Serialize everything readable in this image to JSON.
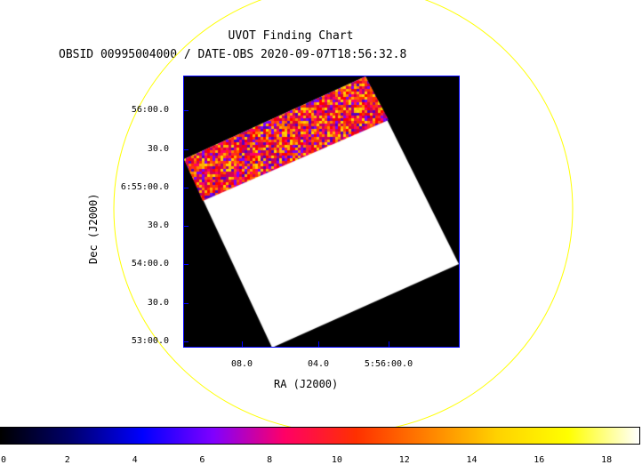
{
  "chart_data": {
    "type": "heatmap",
    "title": "UVOT Finding Chart",
    "subtitle": "OBSID 00995004000 / DATE-OBS 2020-09-07T18:56:32.8",
    "xlabel": "RA (J2000)",
    "ylabel": "Dec (J2000)",
    "x_ticks": [
      "08.0",
      "04.0",
      "5:56:00.0"
    ],
    "y_ticks": [
      "56:00.0",
      "30.0",
      "6:55:00.0",
      "30.0",
      "54:00.0",
      "30.0",
      "53:00.0"
    ],
    "colorbar": {
      "range": [
        0,
        19
      ],
      "ticks": [
        0,
        2,
        4,
        6,
        8,
        10,
        12,
        14,
        16,
        18
      ],
      "colormap": [
        "#000000",
        "#00006e",
        "#0000ff",
        "#8000ff",
        "#ff0066",
        "#ff3000",
        "#ff8000",
        "#ffd200",
        "#ffff00",
        "#ffffff"
      ]
    },
    "colors": {
      "frame": "#0000ff",
      "circle": "#ffff00",
      "saturated": "#ffffff",
      "background": "#000000"
    }
  }
}
